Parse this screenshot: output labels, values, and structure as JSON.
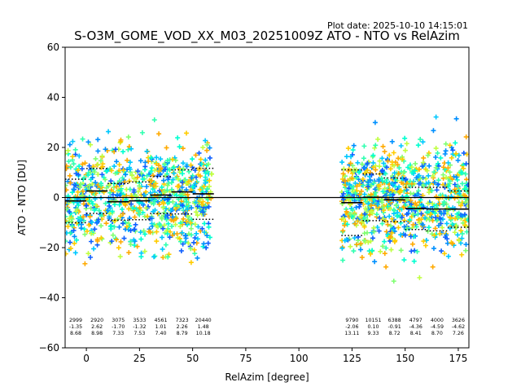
{
  "chart_data": {
    "type": "scatter",
    "title": "S-O3M_GOME_VOD_XX_M03_20251009Z ATO - NTO vs RelAzim",
    "plot_date": "Plot date: 2025-10-10 14:15:01",
    "xlabel": "RelAzim [degree]",
    "ylabel": "ATO - NTO [DU]",
    "xlim": [
      -10,
      180
    ],
    "ylim": [
      -60,
      60
    ],
    "xticks": [
      "0",
      "25",
      "50",
      "75",
      "100",
      "125",
      "150",
      "175"
    ],
    "xtick_values": [
      0,
      25,
      50,
      75,
      100,
      125,
      150,
      175
    ],
    "yticks": [
      "60",
      "40",
      "20",
      "0",
      "−20",
      "−40",
      "−60"
    ],
    "ytick_values": [
      60,
      40,
      20,
      0,
      -20,
      -40,
      -60
    ],
    "grid": false,
    "zero_line": 0,
    "bins": [
      {
        "center": -5,
        "count": "2999",
        "mean": "-1.35",
        "std": "8.68"
      },
      {
        "center": 5,
        "count": "2920",
        "mean": "2.62",
        "std": "8.98"
      },
      {
        "center": 15,
        "count": "3075",
        "mean": "-1.70",
        "std": "7.33"
      },
      {
        "center": 25,
        "count": "3533",
        "mean": "-1.32",
        "std": "7.53"
      },
      {
        "center": 35,
        "count": "4561",
        "mean": "1.01",
        "std": "7.40"
      },
      {
        "center": 45,
        "count": "7323",
        "mean": "2.26",
        "std": "8.79"
      },
      {
        "center": 55,
        "count": "20440",
        "mean": "1.48",
        "std": "10.18"
      },
      {
        "center": 125,
        "count": "9790",
        "mean": "-2.06",
        "std": "13.11"
      },
      {
        "center": 135,
        "count": "10151",
        "mean": "0.10",
        "std": "9.33"
      },
      {
        "center": 145,
        "count": "6388",
        "mean": "-0.91",
        "std": "8.72"
      },
      {
        "center": 155,
        "count": "4797",
        "mean": "-4.36",
        "std": "8.41"
      },
      {
        "center": 165,
        "count": "4000",
        "mean": "-4.59",
        "std": "8.70"
      },
      {
        "center": 175,
        "count": "3626",
        "mean": "-4.62",
        "std": "7.26"
      }
    ],
    "clusters": [
      {
        "x": [
          -10,
          59
        ],
        "y_center": 0,
        "y_spread": 25
      },
      {
        "x": [
          120,
          180
        ],
        "y_center": 0,
        "y_spread": 25
      }
    ],
    "colors": {
      "point_colors": [
        "#00ffd0",
        "#30ffb0",
        "#7fff70",
        "#c0ff40",
        "#00c8ff",
        "#0090ff",
        "#ffcc00",
        "#ffaa00",
        "#1060ff"
      ],
      "mean_line": "#000000",
      "std_line": "#000000",
      "zero_line": "#000000"
    }
  }
}
